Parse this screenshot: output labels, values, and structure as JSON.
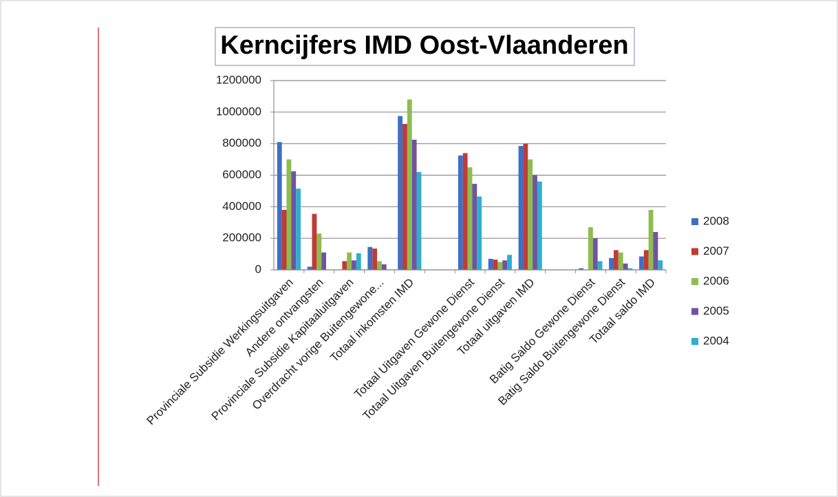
{
  "chart_data": {
    "type": "bar",
    "title": "Kerncijfers IMD Oost-Vlaanderen",
    "categories": [
      "Provinciale Subsidie Werkingsuitgaven",
      "Andere ontvangsten",
      "Provinciale Subsidie Kapitaaluitgaven",
      "Overdracht vorige Buitengewone...",
      "Totaal inkomsten IMD",
      null,
      "Totaal Uitgaven Gewone Dienst",
      "Totaal Uitgaven Buitengewone Dienst",
      "Totaal uitgaven IMD",
      null,
      "Batig Saldo Gewone Dienst",
      "Batig Saldo Buitengewone Dienst",
      "Totaal saldo IMD"
    ],
    "series": [
      {
        "name": "2008",
        "color": "#3f6fc4",
        "values": [
          810000,
          20000,
          0,
          145000,
          975000,
          null,
          725000,
          70000,
          785000,
          null,
          10000,
          75000,
          85000
        ]
      },
      {
        "name": "2007",
        "color": "#be3c38",
        "values": [
          380000,
          355000,
          55000,
          135000,
          925000,
          null,
          740000,
          65000,
          800000,
          null,
          0,
          125000,
          125000
        ]
      },
      {
        "name": "2006",
        "color": "#8fbc4f",
        "values": [
          700000,
          230000,
          110000,
          55000,
          1080000,
          null,
          650000,
          50000,
          700000,
          null,
          270000,
          110000,
          380000
        ]
      },
      {
        "name": "2005",
        "color": "#6f54a0",
        "values": [
          625000,
          110000,
          60000,
          35000,
          825000,
          null,
          545000,
          60000,
          600000,
          null,
          200000,
          40000,
          240000
        ]
      },
      {
        "name": "2004",
        "color": "#2faed0",
        "values": [
          515000,
          0,
          105000,
          0,
          620000,
          null,
          465000,
          95000,
          560000,
          null,
          55000,
          10000,
          60000
        ]
      }
    ],
    "ylim": [
      0,
      1200000
    ],
    "yticks": [
      0,
      200000,
      400000,
      600000,
      800000,
      1000000,
      1200000
    ],
    "grid": true,
    "legend": "right"
  }
}
